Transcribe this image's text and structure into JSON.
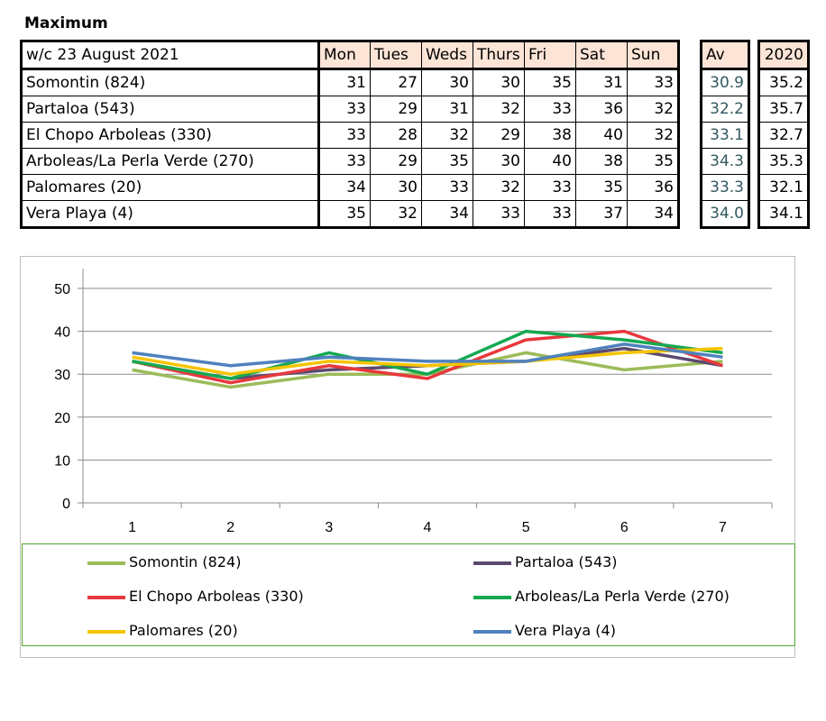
{
  "title": "Maximum",
  "table": {
    "header": "w/c 23 August 2021",
    "days": [
      "Mon",
      "Tues",
      "Weds",
      "Thurs",
      "Fri",
      "Sat",
      "Sun"
    ],
    "avg_header": "Av",
    "year_header": "2020",
    "rows": [
      {
        "name": "Somontin (824)",
        "values": [
          "31",
          "27",
          "30",
          "30",
          "35",
          "31",
          "33"
        ],
        "avg": "30.9",
        "y2020": "35.2"
      },
      {
        "name": "Partaloa (543)",
        "values": [
          "33",
          "29",
          "31",
          "32",
          "33",
          "36",
          "32"
        ],
        "avg": "32.2",
        "y2020": "35.7"
      },
      {
        "name": "El Chopo  Arboleas (330)",
        "values": [
          "33",
          "28",
          "32",
          "29",
          "38",
          "40",
          "32"
        ],
        "avg": "33.1",
        "y2020": "32.7"
      },
      {
        "name": "Arboleas/La Perla Verde (270)",
        "values": [
          "33",
          "29",
          "35",
          "30",
          "40",
          "38",
          "35"
        ],
        "avg": "34.3",
        "y2020": "35.3"
      },
      {
        "name": "Palomares (20)",
        "values": [
          "34",
          "30",
          "33",
          "32",
          "33",
          "35",
          "36"
        ],
        "avg": "33.3",
        "y2020": "32.1"
      },
      {
        "name": "Vera Playa (4)",
        "values": [
          "35",
          "32",
          "34",
          "33",
          "33",
          "37",
          "34"
        ],
        "avg": "34.0",
        "y2020": "34.1"
      }
    ]
  },
  "chart_data": {
    "type": "line",
    "x": [
      1,
      2,
      3,
      4,
      5,
      6,
      7
    ],
    "xticks": [
      "1",
      "2",
      "3",
      "4",
      "5",
      "6",
      "7"
    ],
    "yticks": [
      "0",
      "10",
      "20",
      "30",
      "40",
      "50"
    ],
    "ylim": [
      0,
      50
    ],
    "grid": true,
    "legend_position": "bottom",
    "series": [
      {
        "name": "Somontin (824)",
        "color": "#9bbb59",
        "values": [
          31,
          27,
          30,
          30,
          35,
          31,
          33
        ]
      },
      {
        "name": "Partaloa (543)",
        "color": "#5b4a6e",
        "values": [
          33,
          29,
          31,
          32,
          33,
          36,
          32
        ]
      },
      {
        "name": "El Chopo  Arboleas (330)",
        "color": "#e8383d",
        "values": [
          33,
          28,
          32,
          29,
          38,
          40,
          32
        ]
      },
      {
        "name": "Arboleas/La Perla Verde (270)",
        "color": "#14a850",
        "values": [
          33,
          29,
          35,
          30,
          40,
          38,
          35
        ]
      },
      {
        "name": "Palomares (20)",
        "color": "#f5c400",
        "values": [
          34,
          30,
          33,
          32,
          33,
          35,
          36
        ]
      },
      {
        "name": "Vera Playa (4)",
        "color": "#4f81bd",
        "values": [
          35,
          32,
          34,
          33,
          33,
          37,
          34
        ]
      }
    ]
  }
}
